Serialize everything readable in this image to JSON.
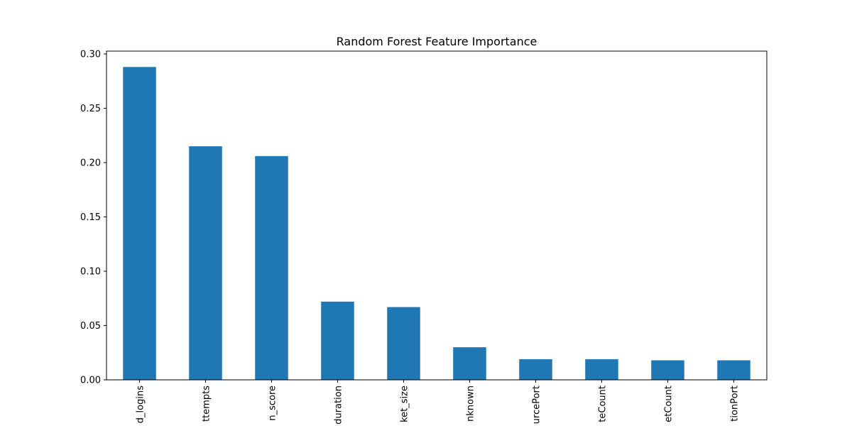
{
  "chart_data": {
    "type": "bar",
    "title": "Random Forest Feature Importance",
    "xlabel": "",
    "ylabel": "",
    "categories": [
      "d_logins",
      "ttempts",
      "n_score",
      "duration",
      "ket_size",
      "nknown",
      "urcePort",
      "teCount",
      "etCount",
      "tionPort"
    ],
    "values": [
      0.288,
      0.215,
      0.206,
      0.072,
      0.067,
      0.03,
      0.019,
      0.019,
      0.018,
      0.018
    ],
    "ylim": [
      0,
      0.3
    ],
    "yticks": [
      "0.00",
      "0.05",
      "0.10",
      "0.15",
      "0.20",
      "0.25",
      "0.30"
    ],
    "ytick_values": [
      0,
      0.05,
      0.1,
      0.15,
      0.2,
      0.25,
      0.3
    ],
    "bar_color": "#1f77b4",
    "grid": false,
    "legend": "none"
  }
}
